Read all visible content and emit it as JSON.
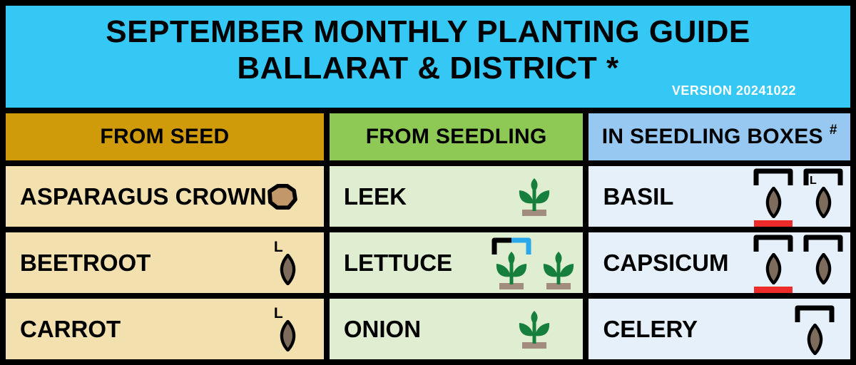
{
  "title": {
    "line1": "SEPTEMBER MONTHLY PLANTING GUIDE",
    "line2": "BALLARAT & DISTRICT *",
    "version": "VERSION 20241022"
  },
  "columns": [
    {
      "label": "FROM SEED"
    },
    {
      "label": "FROM SEEDLING"
    },
    {
      "label": "IN SEEDLING BOXES",
      "superscript": "#"
    }
  ],
  "rows": [
    {
      "cells": [
        {
          "label": "ASPARAGUS CROWN",
          "icons": [
            {
              "name": "asparagus-crown-icon",
              "type": "crown"
            }
          ]
        },
        {
          "label": "LEEK",
          "icons": [
            {
              "name": "seedling-icon",
              "type": "seedling"
            }
          ]
        },
        {
          "label": "BASIL",
          "icons": [
            {
              "name": "seed-in-box-red-underline-icon",
              "type": "seed",
              "bracket": "black",
              "underline": true
            },
            {
              "name": "seed-in-box-late-icon",
              "type": "seed",
              "bracket": "black",
              "bracket_label": "L"
            }
          ]
        }
      ]
    },
    {
      "cells": [
        {
          "label": "BEETROOT",
          "icons": [
            {
              "name": "seed-late-icon",
              "type": "seed",
              "top_label": "L"
            }
          ]
        },
        {
          "label": "LETTUCE",
          "icons": [
            {
              "name": "seedling-box-black-blue-icon",
              "type": "seedling",
              "bracket": "black-blue"
            },
            {
              "name": "seedling-icon",
              "type": "seedling"
            }
          ]
        },
        {
          "label": "CAPSICUM",
          "icons": [
            {
              "name": "seed-in-box-red-underline-icon",
              "type": "seed",
              "bracket": "black",
              "underline": true
            },
            {
              "name": "seed-in-box-icon",
              "type": "seed",
              "bracket": "black"
            }
          ]
        }
      ]
    },
    {
      "cells": [
        {
          "label": "CARROT",
          "icons": [
            {
              "name": "seed-late-icon",
              "type": "seed",
              "top_label": "L"
            }
          ]
        },
        {
          "label": "ONION",
          "icons": [
            {
              "name": "seedling-icon",
              "type": "seedling"
            }
          ]
        },
        {
          "label": "CELERY",
          "icons": [
            {
              "name": "seed-in-box-icon",
              "type": "seed",
              "bracket": "black"
            }
          ]
        }
      ]
    }
  ],
  "colors": {
    "title_bg": "#35C8F4",
    "header_seed_bg": "#D09B0A",
    "header_seedling_bg": "#8FC955",
    "header_boxes_bg": "#96C8F1",
    "cell_seed_bg": "#F2E0AE",
    "cell_seedling_bg": "#DFEDD0",
    "cell_boxes_bg": "#E5F0FA",
    "seed_fill": "#7D6C5B",
    "crown_fill": "#C2986B",
    "plant_green": "#177F3D",
    "soil": "#A18C7E",
    "red_mark": "#EE2B2B",
    "bracket_blue": "#29A8EC",
    "border": "#000000",
    "version_text": "#FFFFFF"
  }
}
